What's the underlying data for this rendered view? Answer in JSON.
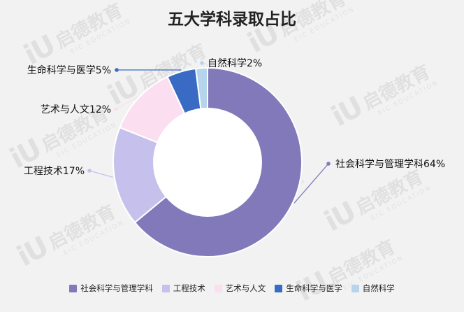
{
  "chart_data": {
    "type": "pie",
    "title": "五大学科录取占比",
    "hole": "donut",
    "legend_position": "bottom",
    "slices": [
      {
        "name": "社会科学与管理学科",
        "label": "社会科学与管理学科64%",
        "value": 64,
        "color": "#8279bb"
      },
      {
        "name": "工程技术",
        "label": "工程技术17%",
        "value": 17,
        "color": "#c5c1ec"
      },
      {
        "name": "艺术与人文",
        "label": "艺术与人文12%",
        "value": 12,
        "color": "#fbdff0"
      },
      {
        "name": "生命科学与医学",
        "label": "生命科学与医学5%",
        "value": 5,
        "color": "#3a6bc4"
      },
      {
        "name": "自然科学",
        "label": "自然科学2%",
        "value": 2,
        "color": "#b6d5ec"
      }
    ]
  },
  "watermark": {
    "brand": "启德教育",
    "brand_en": "EIC EDUCATION",
    "logo": "iU"
  }
}
